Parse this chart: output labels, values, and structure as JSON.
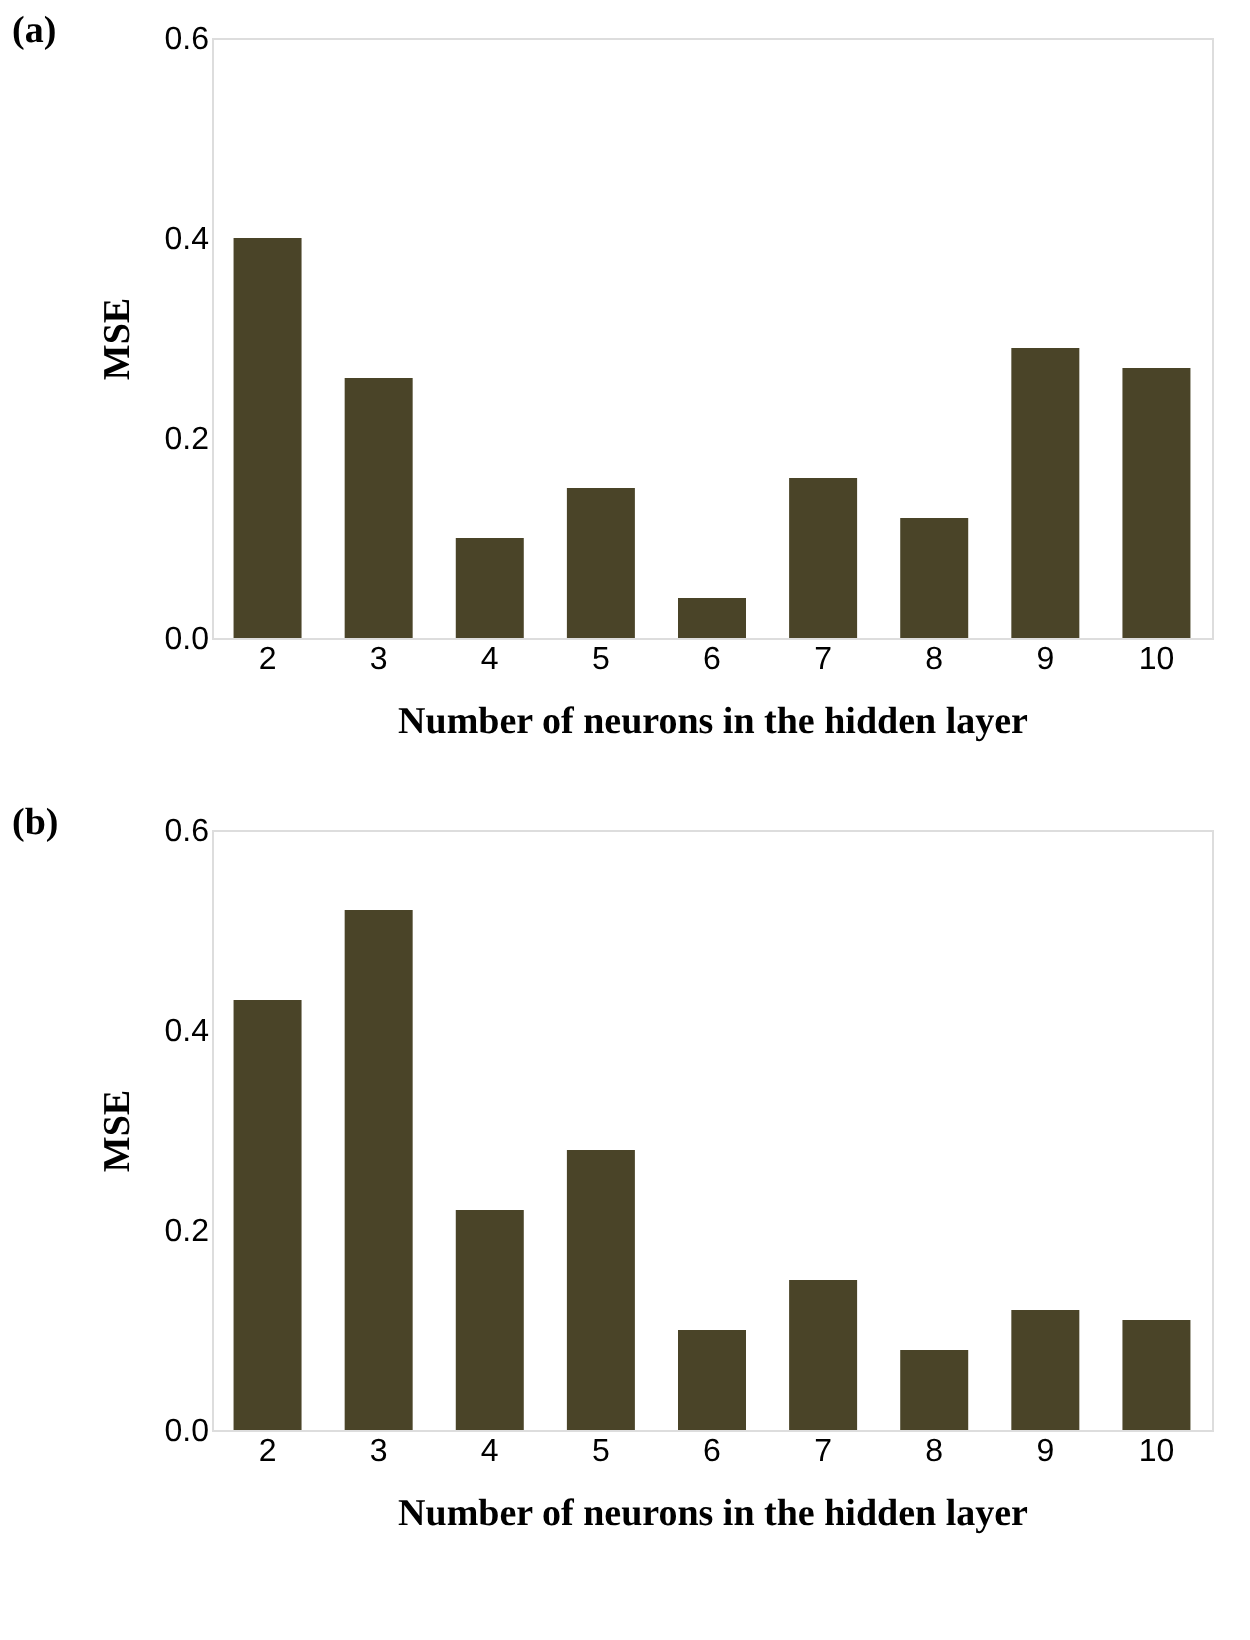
{
  "chart_data": [
    {
      "type": "bar",
      "title": "(a)",
      "xlabel": "Number of neurons in the hidden layer",
      "ylabel": "MSE",
      "categories": [
        "2",
        "3",
        "4",
        "5",
        "6",
        "7",
        "8",
        "9",
        "10"
      ],
      "values": [
        0.4,
        0.26,
        0.1,
        0.15,
        0.04,
        0.16,
        0.12,
        0.29,
        0.27
      ],
      "color": "#4a4428",
      "ylim": [
        0,
        0.6
      ],
      "yticks": [
        {
          "value": 0,
          "label": "0.0"
        },
        0.2,
        0.4,
        0.6
      ],
      "grid": false,
      "legend": false
    },
    {
      "type": "bar",
      "title": "(b)",
      "xlabel": "Number of neurons in the hidden layer",
      "ylabel": "MSE",
      "categories": [
        "2",
        "3",
        "4",
        "5",
        "6",
        "7",
        "8",
        "9",
        "10"
      ],
      "values": [
        0.43,
        0.52,
        0.22,
        0.28,
        0.1,
        0.15,
        0.08,
        0.12,
        0.11
      ],
      "color": "#4a4428",
      "ylim": [
        0,
        0.6
      ],
      "yticks": [
        {
          "value": 0,
          "label": "0.0"
        },
        0.2,
        0.4,
        0.6
      ],
      "grid": false,
      "legend": false
    }
  ]
}
